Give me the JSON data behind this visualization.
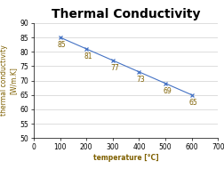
{
  "title": "Thermal Conductivity",
  "ylabel": "thermal conductivity\n[W/m.K]",
  "xlabel": "temperature [°C]",
  "x": [
    100,
    200,
    300,
    400,
    500,
    600
  ],
  "y": [
    85,
    81,
    77,
    73,
    69,
    65
  ],
  "labels": [
    "85",
    "81",
    "77",
    "73",
    "69",
    "65"
  ],
  "xlim": [
    0,
    700
  ],
  "ylim": [
    50,
    90
  ],
  "xticks": [
    0,
    100,
    200,
    300,
    400,
    500,
    600,
    700
  ],
  "yticks": [
    50,
    55,
    60,
    65,
    70,
    75,
    80,
    85,
    90
  ],
  "line_color": "#4472C4",
  "marker": "x",
  "ylabel_color": "#7F6000",
  "xlabel_color": "#7F6000",
  "label_color": "#7F6000",
  "title_fontsize": 10,
  "axis_label_fontsize": 5.5,
  "tick_fontsize": 5.5,
  "data_label_fontsize": 5.5,
  "legend_fontsize": 5.5
}
